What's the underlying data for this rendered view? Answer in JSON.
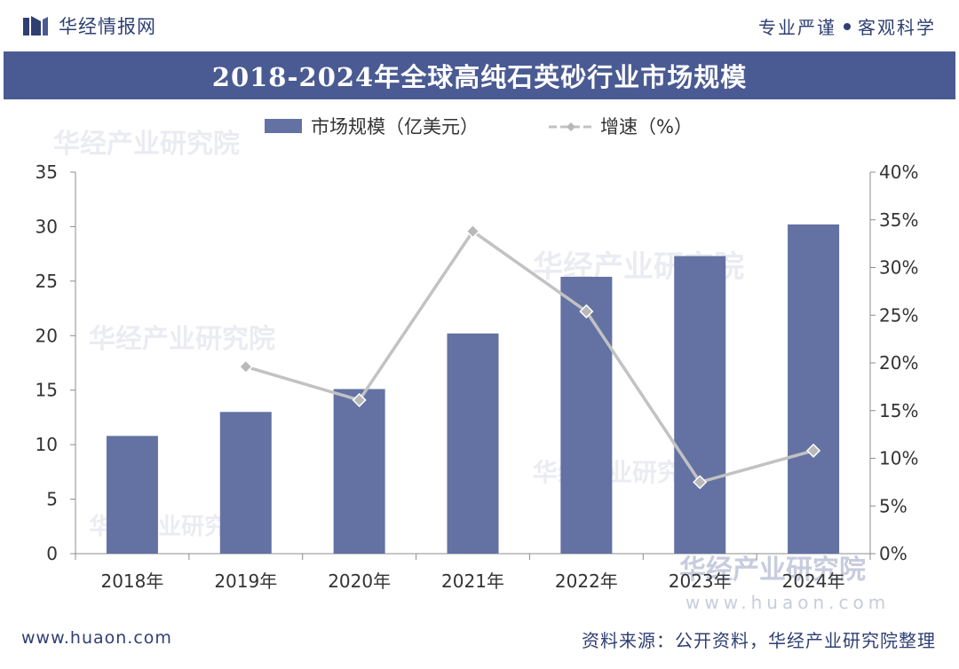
{
  "header": {
    "brand": "华经情报网",
    "slogan_left": "专业严谨",
    "slogan_right": "客观科学"
  },
  "title": "2018-2024年全球高纯石英砂行业市场规模",
  "footer": {
    "website": "www.huaon.com",
    "source": "资料来源：公开资料，华经产业研究院整理"
  },
  "watermark": {
    "text": "华经产业研究院",
    "url": "www.huaon.com"
  },
  "colors": {
    "bar": "#6372a3",
    "line": "#c2c2c2",
    "marker": "#b8b8b8",
    "axis_text": "#333333",
    "title_bg": "#4a5a92"
  },
  "chart_data": {
    "type": "bar",
    "title": "2018-2024年全球高纯石英砂行业市场规模",
    "categories": [
      "2018年",
      "2019年",
      "2020年",
      "2021年",
      "2022年",
      "2023年",
      "2024年"
    ],
    "series": [
      {
        "name": "市场规模（亿美元）",
        "type": "bar",
        "axis": "left",
        "values": [
          10.8,
          13.0,
          15.1,
          20.2,
          25.4,
          27.3,
          30.2
        ]
      },
      {
        "name": "增速（%）",
        "type": "line",
        "axis": "right",
        "values": [
          null,
          19.6,
          16.1,
          33.8,
          25.4,
          7.5,
          10.8
        ]
      }
    ],
    "y_left": {
      "min": 0,
      "max": 35,
      "ticks": [
        "0",
        "5",
        "10",
        "15",
        "20",
        "25",
        "30",
        "35"
      ]
    },
    "y_right": {
      "min": 0,
      "max": 40,
      "ticks": [
        "0%",
        "5%",
        "10%",
        "15%",
        "20%",
        "25%",
        "30%",
        "35%",
        "40%"
      ]
    },
    "legend": [
      "市场规模（亿美元）",
      "增速（%）"
    ],
    "legend_position": "top-center",
    "grid": false
  }
}
